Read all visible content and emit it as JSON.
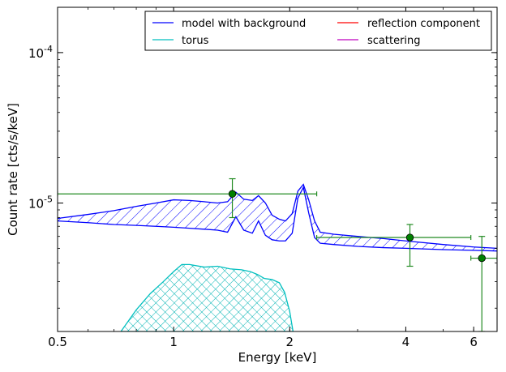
{
  "chart_data": {
    "type": "line",
    "title": "",
    "xlabel": "Energy [keV]",
    "ylabel": "Count rate [cts/s/keV]",
    "xscale": "log",
    "yscale": "log",
    "xlim": [
      0.5,
      6.9
    ],
    "ylim": [
      1.4e-06,
      0.0002
    ],
    "xticks": [
      {
        "value": 0.5,
        "label": "0.5"
      },
      {
        "value": 1,
        "label": "1"
      },
      {
        "value": 2,
        "label": "2"
      },
      {
        "value": 4,
        "label": "4"
      },
      {
        "value": 6,
        "label": "6"
      }
    ],
    "yticks": [
      {
        "value": 1e-05,
        "label_base": "10",
        "label_exp": "-5"
      },
      {
        "value": 0.0001,
        "label_base": "10",
        "label_exp": "-4"
      }
    ],
    "legend": {
      "placement": "top-right",
      "columns": 2,
      "entries": [
        {
          "label": "model with background",
          "color": "#0000ff"
        },
        {
          "label": "reflection component",
          "color": "#ff0000"
        },
        {
          "label": "torus",
          "color": "#00bfbf"
        },
        {
          "label": "scattering",
          "color": "#bf00bf"
        }
      ]
    },
    "series": [
      {
        "name": "model with background",
        "kind": "band",
        "color": "#0000ff",
        "hatch": "diagonal",
        "x": [
          0.5,
          0.6,
          0.7,
          0.8,
          0.9,
          1.0,
          1.1,
          1.2,
          1.3,
          1.38,
          1.45,
          1.52,
          1.6,
          1.66,
          1.73,
          1.8,
          1.88,
          1.95,
          2.03,
          2.1,
          2.17,
          2.24,
          2.32,
          2.4,
          2.6,
          3.0,
          3.5,
          4.0,
          5.0,
          6.0,
          6.9
        ],
        "upper": [
          7.9e-06,
          8.4e-06,
          8.9e-06,
          9.5e-06,
          1e-05,
          1.05e-05,
          1.04e-05,
          1.02e-05,
          1e-05,
          1.02e-05,
          1.18e-05,
          1.06e-05,
          1.04e-05,
          1.12e-05,
          1e-05,
          8.3e-06,
          7.8e-06,
          7.6e-06,
          8.5e-06,
          1.2e-05,
          1.33e-05,
          1.05e-05,
          7.6e-06,
          6.4e-06,
          6.2e-06,
          6e-06,
          5.8e-06,
          5.6e-06,
          5.3e-06,
          5.1e-06,
          5e-06
        ],
        "lower": [
          7.6e-06,
          7.4e-06,
          7.2e-06,
          7.1e-06,
          7e-06,
          6.9e-06,
          6.8e-06,
          6.7e-06,
          6.6e-06,
          6.4e-06,
          8.1e-06,
          6.6e-06,
          6.3e-06,
          7.6e-06,
          6.1e-06,
          5.7e-06,
          5.6e-06,
          5.6e-06,
          6.3e-06,
          1.08e-05,
          1.27e-05,
          8.6e-06,
          5.9e-06,
          5.4e-06,
          5.3e-06,
          5.15e-06,
          5.05e-06,
          5e-06,
          4.9e-06,
          4.85e-06,
          4.8e-06
        ]
      },
      {
        "name": "torus",
        "kind": "band",
        "color": "#00bfbf",
        "hatch": "crosshatch",
        "x": [
          0.73,
          0.8,
          0.87,
          0.94,
          1.0,
          1.05,
          1.1,
          1.2,
          1.3,
          1.4,
          1.5,
          1.58,
          1.65,
          1.72,
          1.8,
          1.88,
          1.94,
          2.0,
          2.04
        ],
        "upper": [
          1.4e-06,
          1.95e-06,
          2.5e-06,
          3e-06,
          3.5e-06,
          3.9e-06,
          3.9e-06,
          3.75e-06,
          3.8e-06,
          3.65e-06,
          3.6e-06,
          3.5e-06,
          3.35e-06,
          3.15e-06,
          3.1e-06,
          2.95e-06,
          2.55e-06,
          1.9e-06,
          1.4e-06
        ],
        "lower": [
          1.4e-06,
          1.4e-06,
          1.4e-06,
          1.4e-06,
          1.4e-06,
          1.4e-06,
          1.4e-06,
          1.4e-06,
          1.4e-06,
          1.4e-06,
          1.4e-06,
          1.4e-06,
          1.4e-06,
          1.4e-06,
          1.4e-06,
          1.4e-06,
          1.4e-06,
          1.4e-06,
          1.4e-06
        ]
      },
      {
        "name": "data",
        "kind": "errorbar",
        "color": "#228b22",
        "points": [
          {
            "x": 1.42,
            "y": 1.15e-05,
            "xerr": [
              0.5,
              2.35
            ],
            "yerr": [
              8e-06,
              1.45e-05
            ]
          },
          {
            "x": 4.1,
            "y": 5.9e-06,
            "xerr": [
              2.35,
              5.9
            ],
            "yerr": [
              3.8e-06,
              7.2e-06
            ]
          },
          {
            "x": 6.3,
            "y": 4.3e-06,
            "xerr": [
              5.9,
              6.9
            ],
            "yerr": [
              1.4e-06,
              6e-06
            ]
          }
        ]
      }
    ]
  }
}
